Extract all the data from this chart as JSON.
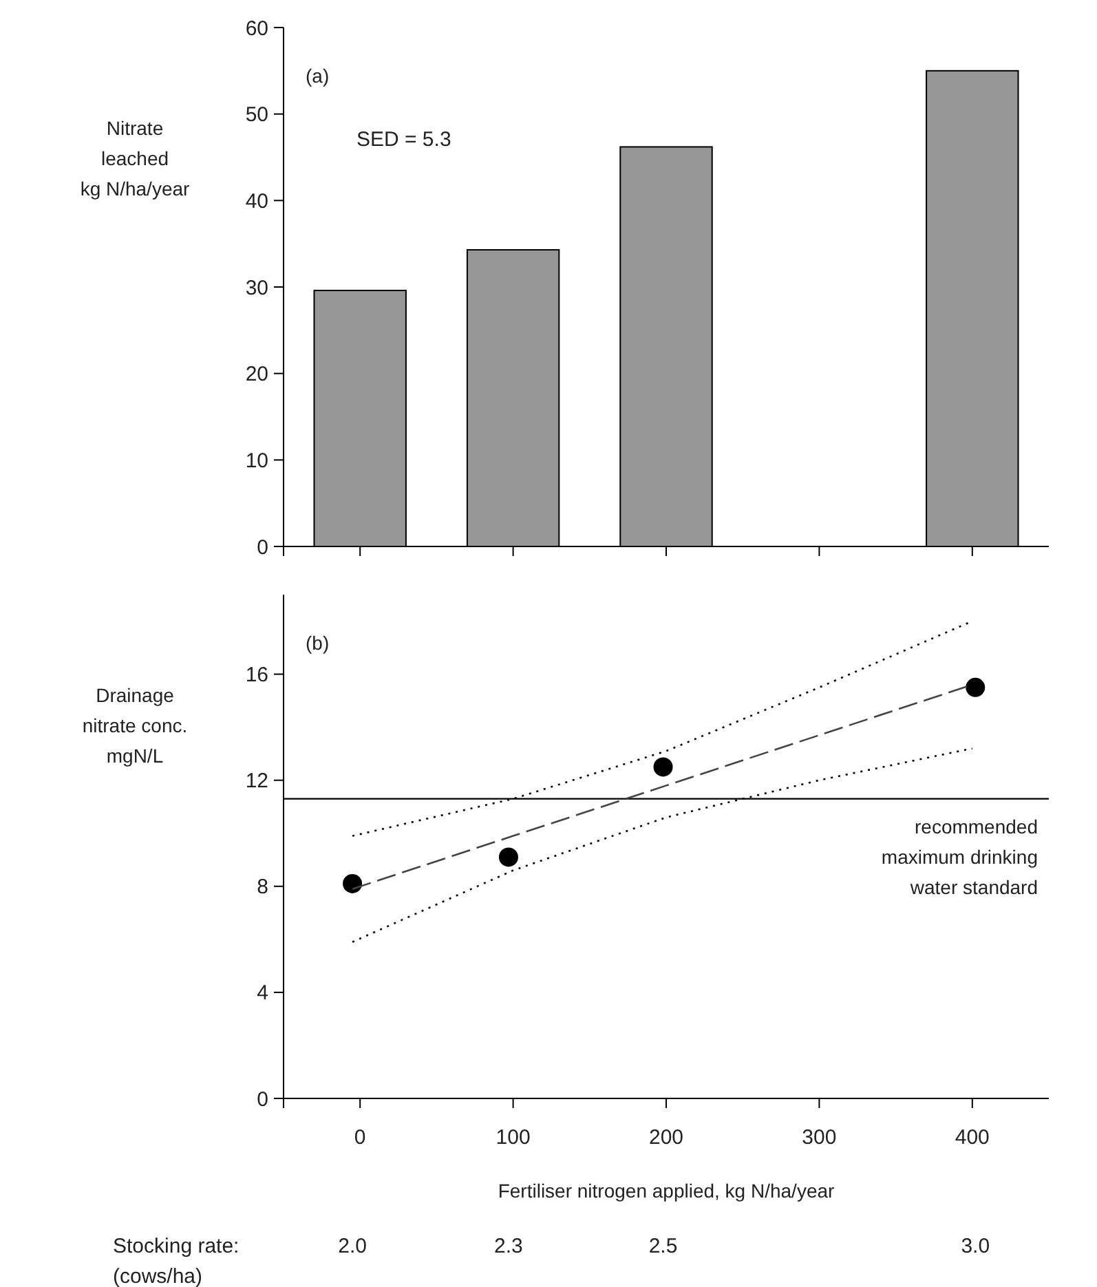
{
  "chart_data": [
    {
      "type": "bar",
      "ylabel": "Nitrate\nleached\nkg N/ha/year",
      "x": [
        0,
        100,
        200,
        400
      ],
      "values": [
        29.6,
        34.3,
        46.2,
        55.0
      ],
      "color": "#969696",
      "xlim": [
        -50,
        450
      ],
      "xticks": [
        {
          "value": 0,
          "label": null
        },
        {
          "value": 100,
          "label": null
        },
        {
          "value": 200,
          "label": null
        },
        {
          "value": 300,
          "label": null
        },
        {
          "value": 400,
          "label": null
        }
      ],
      "ylim": [
        0,
        60
      ],
      "yticks": [
        0,
        10,
        20,
        30,
        40,
        50,
        60
      ],
      "tick_labels": "y",
      "annotations": [
        "(a)",
        "SED = 5.3"
      ]
    },
    {
      "type": "scatter",
      "ylabel": "Drainage\nnitrate conc.\nmgN/L",
      "xlabel": "Fertiliser nitrogen applied, kg N/ha/year",
      "xlim": [
        -50,
        450
      ],
      "xticks": [
        0,
        100,
        200,
        300,
        400
      ],
      "ylim": [
        0,
        19
      ],
      "yticks": [
        0,
        4,
        8,
        12,
        16
      ],
      "series": [
        {
          "type": "scatter",
          "color": "#000000",
          "marker": "circle",
          "x": [
            -5,
            97,
            198,
            402
          ],
          "values": [
            8.1,
            9.1,
            12.5,
            15.5
          ]
        },
        {
          "type": "line",
          "color": "#444444",
          "line_style": "dashed",
          "x": [
            -5,
            100,
            200,
            300,
            400
          ],
          "values": [
            7.9,
            9.9,
            11.8,
            13.7,
            15.6
          ]
        },
        {
          "type": "line",
          "color": "#000000",
          "line_style": "dotted",
          "x": [
            -5,
            100,
            200,
            300,
            400
          ],
          "values": [
            5.9,
            8.6,
            10.6,
            12.0,
            13.2
          ]
        },
        {
          "type": "line",
          "color": "#000000",
          "line_style": "dotted",
          "x": [
            -5,
            100,
            200,
            300,
            400
          ],
          "values": [
            9.9,
            11.3,
            13.1,
            15.5,
            18.0
          ]
        }
      ],
      "ref_lines": [
        {
          "axis": "y",
          "value": 11.3,
          "label": "recommended\nmaximum drinking\nwater standard",
          "color": "#000000",
          "line_style": "solid"
        }
      ],
      "annotations": [
        "(b)",
        "Stocking rate:\n(cows/ha)",
        "2.0",
        "2.3",
        "2.5",
        "3.0"
      ]
    }
  ]
}
